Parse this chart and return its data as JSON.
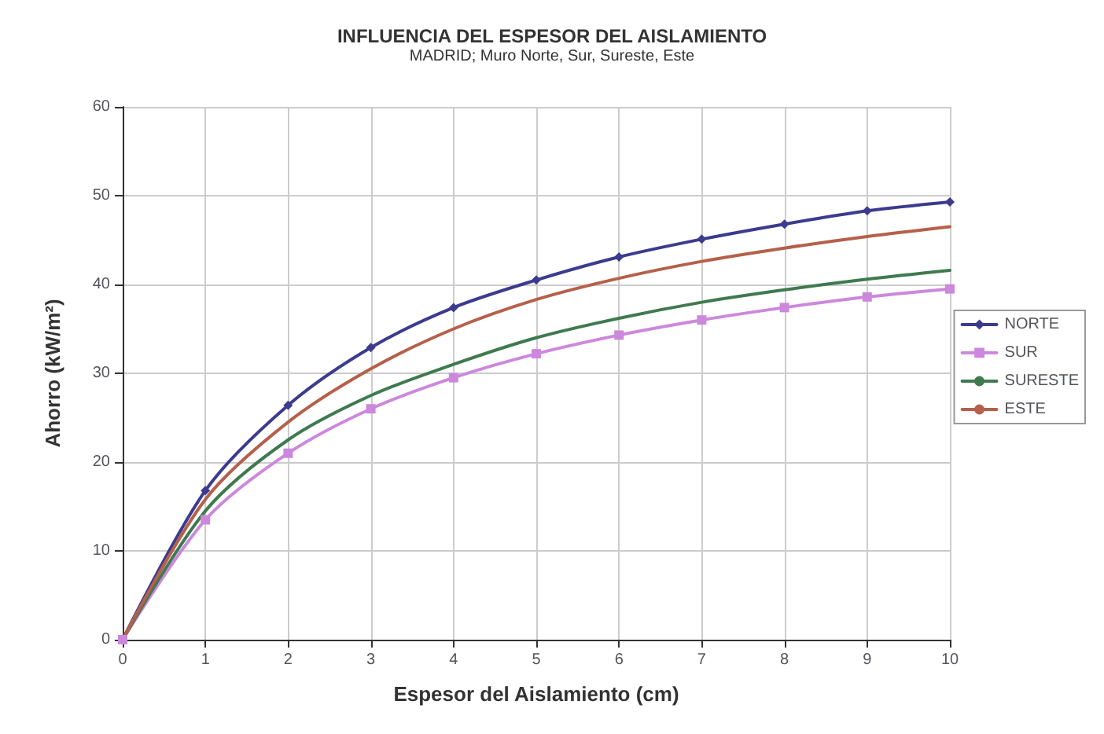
{
  "chart_data": {
    "type": "line",
    "title": "INFLUENCIA DEL ESPESOR DEL AISLAMIENTO",
    "subtitle": "MADRID; Muro Norte, Sur, Sureste, Este",
    "xlabel": "Espesor del Aislamiento (cm)",
    "ylabel": "Ahorro (kW/m²)",
    "x": [
      0,
      1,
      2,
      3,
      4,
      5,
      6,
      7,
      8,
      9,
      10
    ],
    "series": [
      {
        "name": "NORTE",
        "color": "#3b3b8f",
        "marker": "diamond",
        "values": [
          0,
          16.8,
          26.4,
          32.9,
          37.4,
          40.5,
          43.1,
          45.1,
          46.8,
          48.3,
          49.3
        ]
      },
      {
        "name": "SUR",
        "color": "#cc88dd",
        "marker": "square",
        "values": [
          0,
          13.5,
          21,
          26,
          29.5,
          32.2,
          34.3,
          36,
          37.4,
          38.6,
          39.5
        ]
      },
      {
        "name": "SURESTE",
        "color": "#3f7a4f",
        "marker": "none",
        "values": [
          0,
          14.5,
          22.5,
          27.5,
          31,
          34,
          36.2,
          38,
          39.4,
          40.6,
          41.6
        ]
      },
      {
        "name": "ESTE",
        "color": "#b5604a",
        "marker": "none",
        "values": [
          0,
          15.8,
          24.5,
          30.5,
          35,
          38.3,
          40.7,
          42.6,
          44.1,
          45.4,
          46.5
        ]
      }
    ],
    "xlim": [
      0,
      10
    ],
    "xticks": [
      0,
      1,
      2,
      3,
      4,
      5,
      6,
      7,
      8,
      9,
      10
    ],
    "ylim": [
      0,
      60
    ],
    "yticks": [
      0,
      10,
      20,
      30,
      40,
      50,
      60
    ],
    "grid": true,
    "legend": "right",
    "line_style": "solid"
  }
}
